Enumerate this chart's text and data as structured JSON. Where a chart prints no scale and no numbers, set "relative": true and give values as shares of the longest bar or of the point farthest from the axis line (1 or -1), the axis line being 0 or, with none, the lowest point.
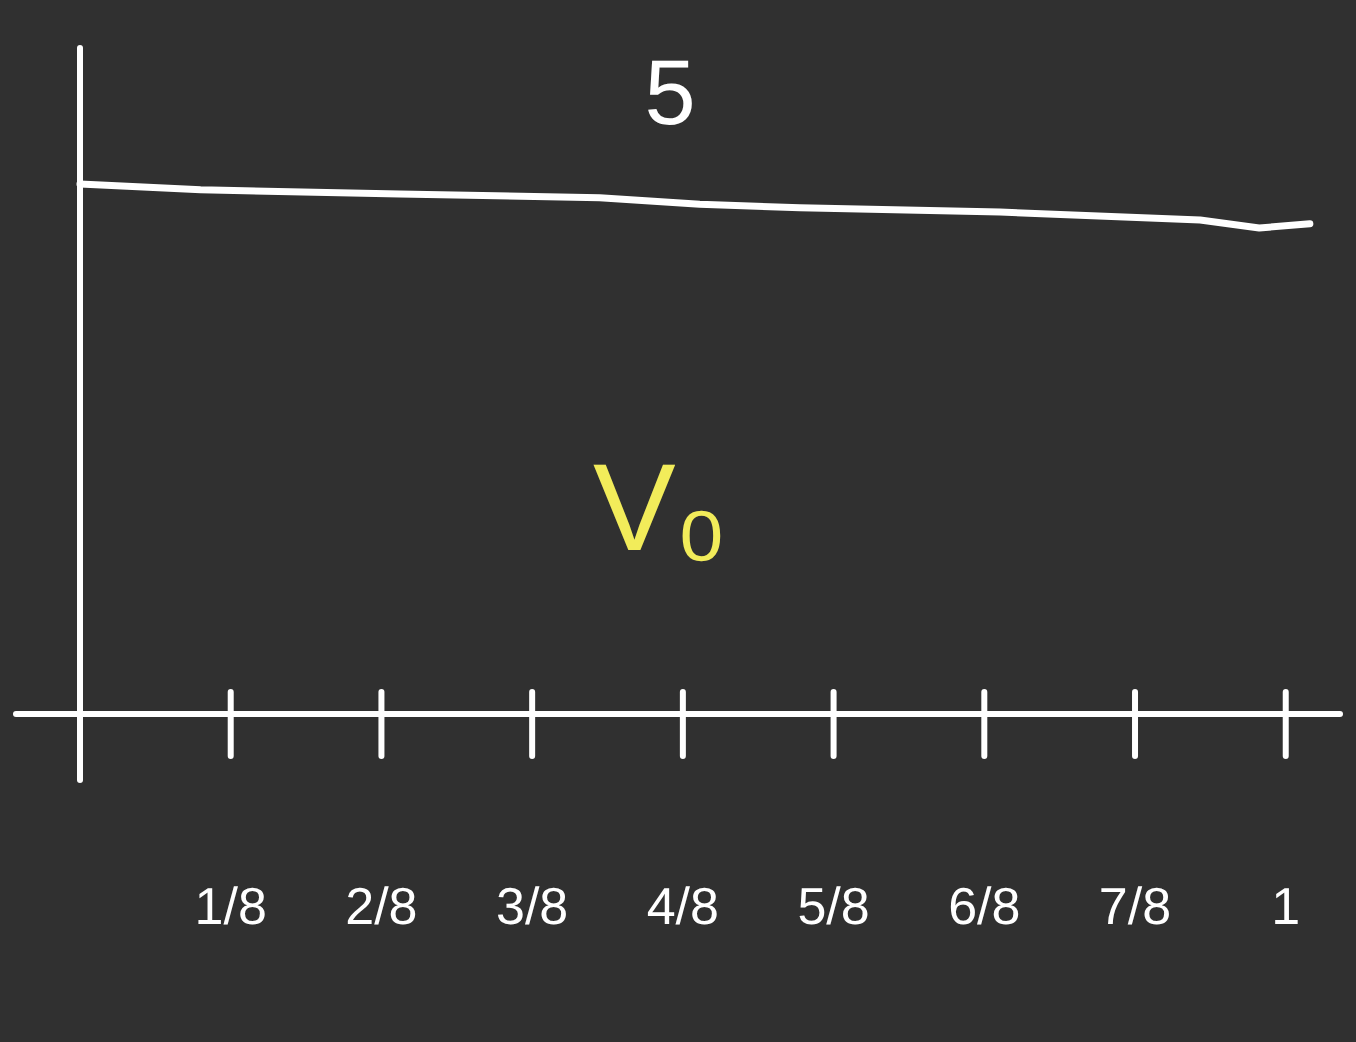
{
  "chart_data": {
    "type": "line",
    "relative": true,
    "tick_labels": "x",
    "xlim": [
      0,
      1.045
    ],
    "xticks": [
      {
        "value": 0.125,
        "label": "1/8"
      },
      {
        "value": 0.25,
        "label": "2/8"
      },
      {
        "value": 0.375,
        "label": "3/8"
      },
      {
        "value": 0.5,
        "label": "4/8"
      },
      {
        "value": 0.625,
        "label": "5/8"
      },
      {
        "value": 0.75,
        "label": "6/8"
      },
      {
        "value": 0.875,
        "label": "7/8"
      },
      {
        "value": 1,
        "label": "1"
      }
    ],
    "series": [
      {
        "color": "#ffffff",
        "x": [
          0,
          0.1,
          0.265,
          0.431,
          0.514,
          0.597,
          0.763,
          0.929,
          0.978,
          1.02
        ],
        "values": [
          1,
          0.989,
          0.981,
          0.974,
          0.962,
          0.955,
          0.947,
          0.932,
          0.917,
          0.925
        ]
      }
    ],
    "annotations": [
      "5",
      "V₀"
    ],
    "marker": "none",
    "line_style": "solid"
  }
}
